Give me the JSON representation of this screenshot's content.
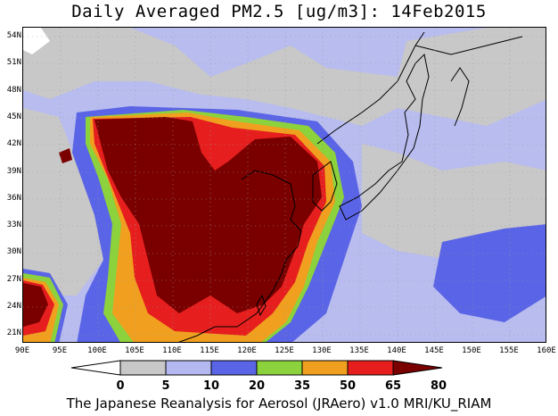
{
  "title": "Daily Averaged PM2.5 [ug/m3]: 14Feb2015",
  "footer": "The Japanese Reanalysis for Aerosol (JRAero) v1.0 MRI/KU_RIAM",
  "map": {
    "lat_labels": [
      "54N",
      "51N",
      "48N",
      "45N",
      "42N",
      "39N",
      "36N",
      "33N",
      "30N",
      "27N",
      "24N",
      "21N"
    ],
    "lon_labels": [
      "90E",
      "95E",
      "100E",
      "105E",
      "110E",
      "115E",
      "120E",
      "125E",
      "130E",
      "135E",
      "140E",
      "145E",
      "150E",
      "155E",
      "160E"
    ]
  },
  "colorbar": {
    "ticks": [
      "0",
      "5",
      "10",
      "20",
      "35",
      "50",
      "65",
      "80"
    ],
    "colors": [
      "#ffffff",
      "#c8c8c8",
      "#b4b8f0",
      "#5a64e6",
      "#8cd23c",
      "#f0a01e",
      "#e61e1e",
      "#7a0000"
    ]
  }
}
